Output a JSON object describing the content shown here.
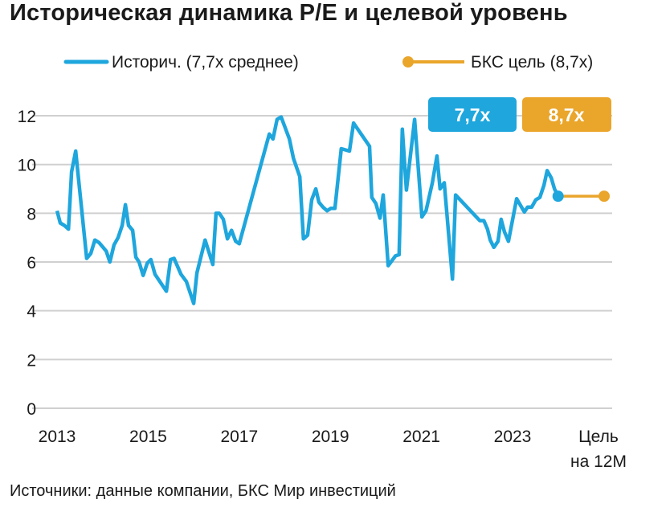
{
  "title": "Историческая динамика P/E и целевой уровень",
  "footer": "Источники: данные компании, БКС Мир инвестиций",
  "colors": {
    "historical": "#1ea6dd",
    "target": "#eaa52b",
    "grid": "#d0d0d0"
  },
  "chart_data": {
    "type": "line",
    "title": "Историческая динамика P/E и целевой уровень",
    "xlabel": "",
    "ylabel": "",
    "ylim": [
      0,
      12
    ],
    "yticks": [
      "0",
      "2",
      "4",
      "6",
      "8",
      "10",
      "12"
    ],
    "xticks": [
      "2013",
      "2015",
      "2017",
      "2019",
      "2021",
      "2023"
    ],
    "target_label_line1": "Цель",
    "target_label_line2": "на 12М",
    "grid": true,
    "legend_position": "top",
    "badges": {
      "historical": "7,7x",
      "target": "8,7x"
    },
    "series": [
      {
        "name": "Историч. (7,7x среднее)",
        "color": "#1ea6dd",
        "x": [
          2013.0,
          2013.07,
          2013.16,
          2013.25,
          2013.32,
          2013.41,
          2013.65,
          2013.74,
          2013.83,
          2013.92,
          2014.08,
          2014.16,
          2014.25,
          2014.34,
          2014.43,
          2014.5,
          2014.57,
          2014.66,
          2014.73,
          2014.8,
          2014.89,
          2014.98,
          2015.06,
          2015.15,
          2015.4,
          2015.49,
          2015.57,
          2015.72,
          2015.84,
          2016.0,
          2016.07,
          2016.25,
          2016.42,
          2016.49,
          2016.56,
          2016.65,
          2016.74,
          2016.83,
          2016.92,
          2017.0,
          2017.66,
          2017.74,
          2017.83,
          2017.92,
          2018.1,
          2018.19,
          2018.33,
          2018.41,
          2018.5,
          2018.59,
          2018.68,
          2018.75,
          2018.84,
          2018.93,
          2019.01,
          2019.1,
          2019.24,
          2019.42,
          2019.51,
          2019.86,
          2019.91,
          2020.0,
          2020.09,
          2020.16,
          2020.27,
          2020.43,
          2020.51,
          2020.58,
          2020.67,
          2020.85,
          2021.01,
          2021.1,
          2021.24,
          2021.34,
          2021.41,
          2021.5,
          2021.68,
          2021.75,
          2022.28,
          2022.37,
          2022.45,
          2022.51,
          2022.59,
          2022.68,
          2022.75,
          2022.82,
          2022.91,
          2023.09,
          2023.26,
          2023.33,
          2023.42,
          2023.51,
          2023.6,
          2023.69,
          2023.76,
          2023.85,
          2023.92,
          2024.0
        ],
        "values": [
          8.1,
          7.6,
          7.5,
          7.35,
          9.7,
          10.55,
          6.15,
          6.35,
          6.9,
          6.8,
          6.45,
          6.0,
          6.7,
          7.0,
          7.5,
          8.35,
          7.5,
          7.3,
          6.2,
          6.0,
          5.45,
          5.95,
          6.1,
          5.5,
          4.8,
          6.1,
          6.15,
          5.5,
          5.2,
          4.3,
          5.55,
          6.9,
          5.9,
          8.0,
          8.0,
          7.75,
          6.95,
          7.3,
          6.85,
          6.75,
          11.25,
          11.05,
          11.85,
          11.95,
          11.05,
          10.25,
          9.5,
          6.95,
          7.1,
          8.55,
          9.0,
          8.45,
          8.25,
          8.1,
          8.2,
          8.2,
          10.65,
          10.55,
          11.7,
          10.75,
          8.65,
          8.4,
          7.8,
          8.75,
          5.85,
          6.25,
          6.3,
          11.45,
          8.95,
          11.85,
          7.85,
          8.1,
          9.25,
          10.35,
          9.0,
          9.25,
          5.3,
          8.75,
          7.7,
          7.7,
          7.35,
          6.9,
          6.6,
          6.85,
          7.75,
          7.25,
          6.85,
          8.6,
          8.05,
          8.25,
          8.25,
          8.55,
          8.65,
          9.15,
          9.75,
          9.45,
          9.0,
          8.7
        ]
      },
      {
        "name": "БКС цель (8,7x)",
        "color": "#eaa52b",
        "x": [
          "2024",
          "Цель на 12М"
        ],
        "values": [
          8.7,
          8.7
        ]
      }
    ]
  }
}
